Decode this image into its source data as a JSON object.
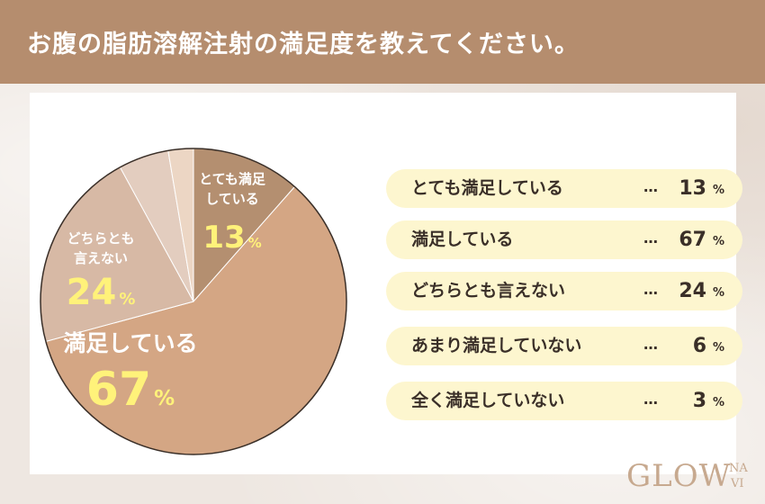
{
  "title": "お腹の脂肪溶解注射の満足度を教えてください。",
  "chart_data": {
    "type": "pie",
    "title": "",
    "unit": "%",
    "slices": [
      {
        "label": "とても満足している",
        "pie_label": [
          "とても満足",
          "している"
        ],
        "value": 13,
        "color": "#b48f70"
      },
      {
        "label": "満足している",
        "pie_label": [
          "満足している"
        ],
        "value": 67,
        "color": "#d4a684"
      },
      {
        "label": "どちらとも言えない",
        "pie_label": [
          "どちらとも",
          "言えない"
        ],
        "value": 24,
        "color": "#d7b9a5"
      },
      {
        "label": "あまり満足していない",
        "pie_label": [],
        "value": 6,
        "color": "#e3cdbf"
      },
      {
        "label": "全く満足していない",
        "pie_label": [],
        "value": 3,
        "color": "#ecd6c4"
      }
    ]
  },
  "legend": {
    "dots": "…",
    "unit": "%",
    "items": [
      {
        "label": "とても満足している",
        "value": "13"
      },
      {
        "label": "満足している",
        "value": "67"
      },
      {
        "label": "どちらとも言えない",
        "value": "24"
      },
      {
        "label": "あまり満足していない",
        "value": "6"
      },
      {
        "label": "全く満足していない",
        "value": "3"
      }
    ]
  },
  "colors": {
    "header": "#b58d6e",
    "legend_bg": "#fdf6cf",
    "pie_value_text": "#fff27a",
    "pie_label_text": "#ffffff"
  },
  "logo": {
    "main": "GLOW",
    "sub_top": "NA",
    "sub_bottom": "VI"
  }
}
